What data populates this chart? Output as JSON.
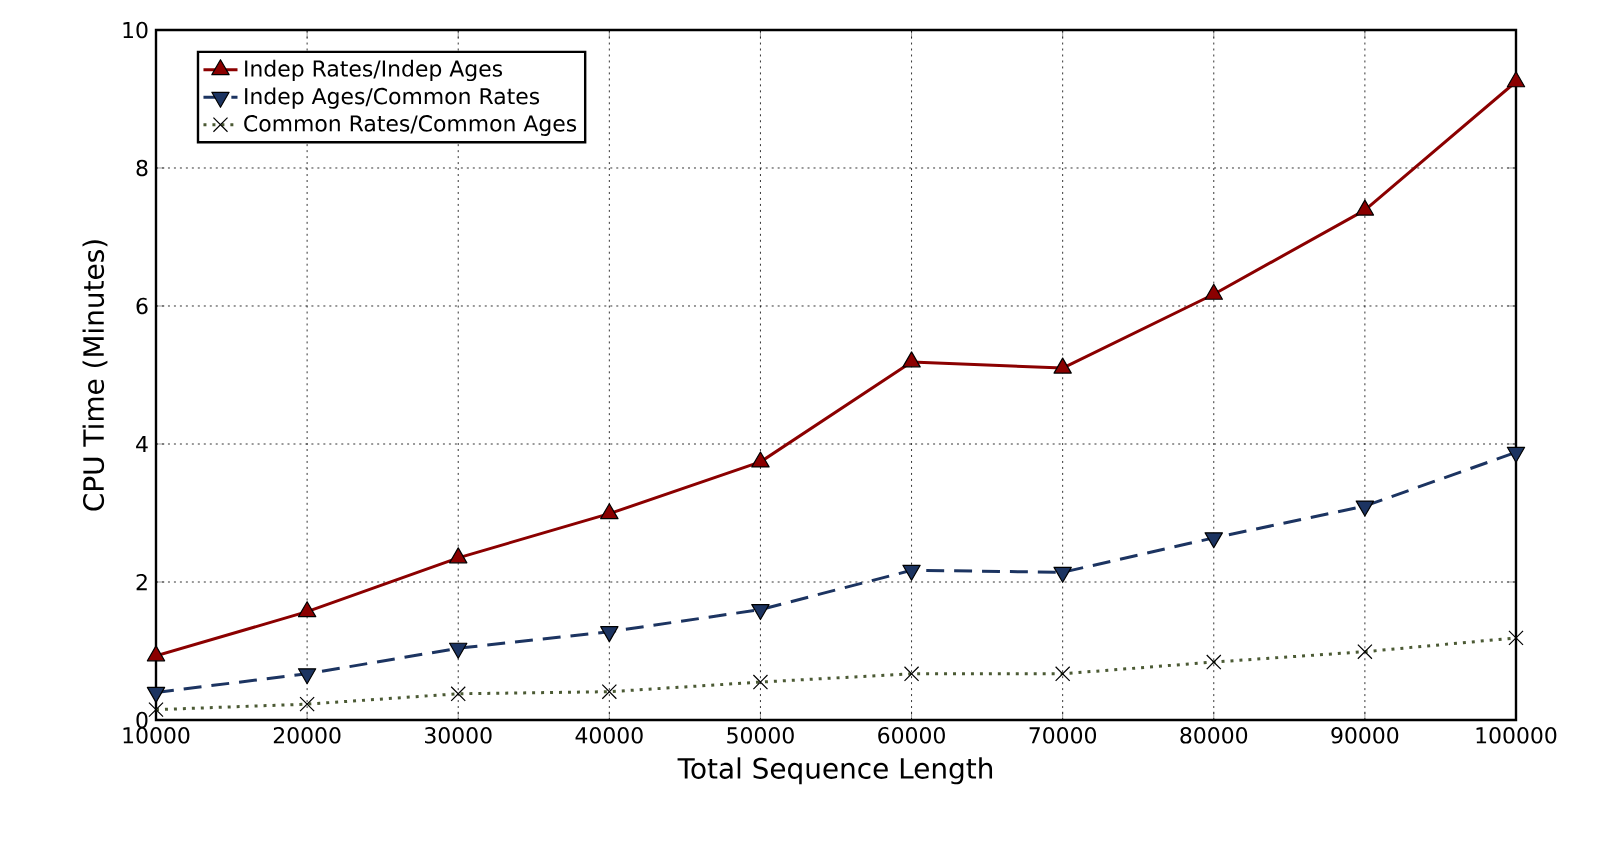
{
  "chart_data": {
    "type": "line",
    "xlabel": "Total Sequence Length",
    "ylabel": "CPU Time (Minutes)",
    "x": [
      10000,
      20000,
      30000,
      40000,
      50000,
      60000,
      70000,
      80000,
      90000,
      100000
    ],
    "series": [
      {
        "name": "Indep Rates/Indep Ages",
        "color": "#8b0000",
        "marker": "triangle",
        "line_style": "solid",
        "values": [
          0.93,
          1.57,
          2.35,
          2.99,
          3.74,
          5.19,
          5.1,
          6.17,
          7.39,
          9.25
        ]
      },
      {
        "name": "Indep Ages/Common Rates",
        "color": "#1c3461",
        "marker": "triangle-down",
        "line_style": "dashed",
        "values": [
          0.4,
          0.67,
          1.04,
          1.28,
          1.6,
          2.17,
          2.14,
          2.64,
          3.1,
          3.88
        ]
      },
      {
        "name": "Common Rates/Common Ages",
        "color": "#4b5a34",
        "marker": "cross",
        "line_style": "dotted",
        "values": [
          0.15,
          0.23,
          0.38,
          0.41,
          0.55,
          0.67,
          0.67,
          0.84,
          0.99,
          1.19
        ]
      }
    ],
    "xlim": [
      10000,
      100000
    ],
    "ylim": [
      0,
      10
    ],
    "xticks": [
      10000,
      20000,
      30000,
      40000,
      50000,
      60000,
      70000,
      80000,
      90000,
      100000
    ],
    "yticks": [
      0,
      2,
      4,
      6,
      8,
      10
    ],
    "grid": true,
    "legend": "top left"
  }
}
